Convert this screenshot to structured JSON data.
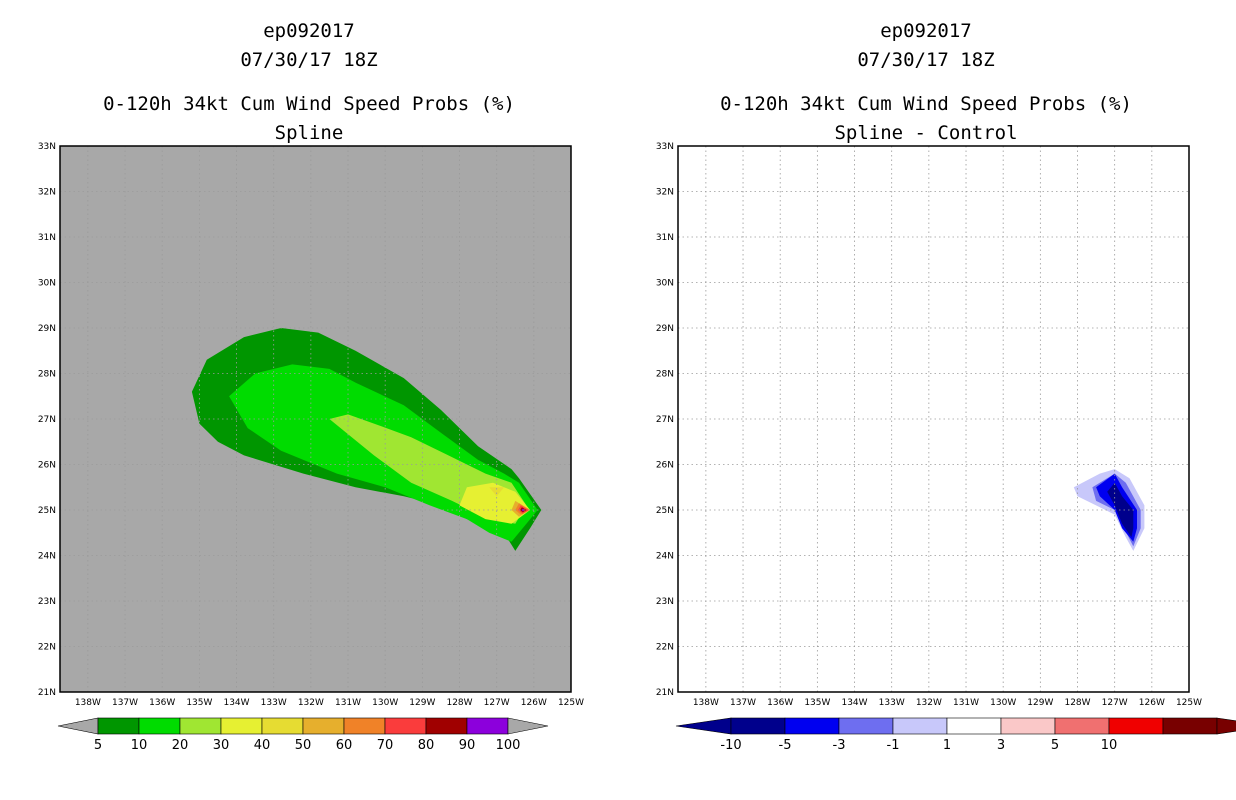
{
  "colors": {
    "land_gray": "#a8a8a8",
    "prob_levels": [
      "#009600",
      "#00dc00",
      "#a0e632",
      "#e6f032",
      "#e6dc32",
      "#e6af2d",
      "#f08228",
      "#fa3c3c",
      "#a00000",
      "#8c00dc"
    ],
    "prob_under": "#a8a8a8",
    "prob_over": "#a8a8a8",
    "diff_levels": [
      "#00008c",
      "#0000f0",
      "#6e6ef0",
      "#c8c8fa",
      "#ffffff",
      "#fac8c8",
      "#f07070",
      "#f00000",
      "#780000"
    ]
  },
  "chart_data": [
    {
      "type": "contour",
      "title_lines": [
        "ep092017",
        "07/30/17 18Z",
        "0-120h 34kt Cum Wind Speed Probs (%)",
        "Spline"
      ],
      "xlim": [
        -138.75,
        -125
      ],
      "ylim": [
        21,
        33
      ],
      "x_ticks": [
        -138,
        -137,
        -136,
        -135,
        -134,
        -133,
        -132,
        -131,
        -130,
        -129,
        -128,
        -127,
        -126,
        -125
      ],
      "x_tick_labels": [
        "138W",
        "137W",
        "136W",
        "135W",
        "134W",
        "133W",
        "132W",
        "131W",
        "130W",
        "129W",
        "128W",
        "127W",
        "126W",
        "125W"
      ],
      "y_ticks": [
        21,
        22,
        23,
        24,
        25,
        26,
        27,
        28,
        29,
        30,
        31,
        32,
        33
      ],
      "y_tick_labels": [
        "21N",
        "22N",
        "23N",
        "24N",
        "25N",
        "26N",
        "27N",
        "28N",
        "29N",
        "30N",
        "31N",
        "32N",
        "33N"
      ],
      "grid": true,
      "contour_levels": [
        5,
        10,
        20,
        30,
        40,
        50,
        60,
        70,
        80,
        90,
        100
      ],
      "colorbar_labels": [
        "5",
        "10",
        "20",
        "30",
        "40",
        "50",
        "60",
        "70",
        "80",
        "90",
        "100"
      ],
      "regions": [
        {
          "level": ">=5",
          "outline": [
            [
              -135.2,
              27.6
            ],
            [
              -134.8,
              28.3
            ],
            [
              -133.8,
              28.8
            ],
            [
              -132.8,
              29
            ],
            [
              -131.8,
              28.9
            ],
            [
              -130.8,
              28.5
            ],
            [
              -129.5,
              27.9
            ],
            [
              -128.5,
              27.2
            ],
            [
              -127.5,
              26.4
            ],
            [
              -126.6,
              25.9
            ],
            [
              -126.4,
              25.7
            ],
            [
              -125.8,
              25
            ],
            [
              -126.1,
              24.6
            ],
            [
              -126.5,
              24.1
            ],
            [
              -126.8,
              24.5
            ],
            [
              -127.8,
              24.8
            ],
            [
              -128.5,
              25.1
            ],
            [
              -129.5,
              25.3
            ],
            [
              -130.8,
              25.5
            ],
            [
              -132.2,
              25.8
            ],
            [
              -133.8,
              26.2
            ],
            [
              -134.5,
              26.5
            ],
            [
              -135.0,
              26.9
            ]
          ]
        },
        {
          "level": ">=10",
          "outline": [
            [
              -134.2,
              27.5
            ],
            [
              -133.5,
              28.0
            ],
            [
              -132.5,
              28.2
            ],
            [
              -131.5,
              28.1
            ],
            [
              -130.8,
              27.8
            ],
            [
              -129.5,
              27.3
            ],
            [
              -128.5,
              26.7
            ],
            [
              -127.5,
              26.1
            ],
            [
              -126.8,
              25.8
            ],
            [
              -126.4,
              25.6
            ],
            [
              -125.9,
              25
            ],
            [
              -126.2,
              24.7
            ],
            [
              -126.6,
              24.3
            ],
            [
              -127.2,
              24.5
            ],
            [
              -127.8,
              24.8
            ],
            [
              -128.8,
              25.1
            ],
            [
              -130,
              25.5
            ],
            [
              -131.3,
              25.8
            ],
            [
              -132.8,
              26.3
            ],
            [
              -133.7,
              26.8
            ]
          ]
        },
        {
          "level": ">=20",
          "outline": [
            [
              -131,
              27.1
            ],
            [
              -130.3,
              26.9
            ],
            [
              -129.3,
              26.6
            ],
            [
              -128.3,
              26.2
            ],
            [
              -127.3,
              25.8
            ],
            [
              -126.6,
              25.6
            ],
            [
              -126.2,
              25.1
            ],
            [
              -126.5,
              24.7
            ],
            [
              -127.2,
              24.8
            ],
            [
              -128.2,
              25.2
            ],
            [
              -129.3,
              25.6
            ],
            [
              -130.3,
              26.2
            ],
            [
              -131.5,
              27
            ]
          ]
        },
        {
          "level": ">=30",
          "outline": [
            [
              -127.8,
              25.5
            ],
            [
              -127.1,
              25.6
            ],
            [
              -126.5,
              25.4
            ],
            [
              -126.1,
              25
            ],
            [
              -126.6,
              24.7
            ],
            [
              -127.3,
              24.8
            ],
            [
              -128,
              25.1
            ]
          ]
        },
        {
          "level": ">=40",
          "outline": [
            [
              -127.2,
              25.5
            ],
            [
              -126.8,
              25.5
            ],
            [
              -127.0,
              25.3
            ]
          ]
        },
        {
          "level": ">=50",
          "outline": [
            [
              -126.5,
              25.2
            ],
            [
              -126.1,
              25
            ],
            [
              -126.4,
              24.85
            ],
            [
              -126.6,
              25
            ]
          ]
        },
        {
          "level": ">=60",
          "outline": [
            [
              -126.4,
              25.15
            ],
            [
              -126.1,
              25
            ],
            [
              -126.35,
              24.9
            ],
            [
              -126.5,
              25
            ]
          ]
        },
        {
          "level": ">=70",
          "outline": [
            [
              -126.35,
              25.1
            ],
            [
              -126.15,
              25
            ],
            [
              -126.3,
              24.92
            ],
            [
              -126.42,
              25
            ]
          ]
        },
        {
          "level": ">=80",
          "outline": [
            [
              -126.32,
              25.06
            ],
            [
              -126.2,
              25
            ],
            [
              -126.3,
              24.95
            ],
            [
              -126.37,
              25
            ]
          ]
        },
        {
          "level": ">=90",
          "outline": [
            [
              -126.3,
              25.03
            ],
            [
              -126.24,
              25
            ],
            [
              -126.3,
              24.97
            ],
            [
              -126.33,
              25
            ]
          ]
        }
      ]
    },
    {
      "type": "contour",
      "title_lines": [
        "ep092017",
        "07/30/17 18Z",
        "0-120h 34kt Cum Wind Speed Probs (%)",
        "Spline - Control"
      ],
      "xlim": [
        -138.75,
        -125
      ],
      "ylim": [
        21,
        33
      ],
      "x_ticks": [
        -138,
        -137,
        -136,
        -135,
        -134,
        -133,
        -132,
        -131,
        -130,
        -129,
        -128,
        -127,
        -126,
        -125
      ],
      "x_tick_labels": [
        "138W",
        "137W",
        "136W",
        "135W",
        "134W",
        "133W",
        "132W",
        "131W",
        "130W",
        "129W",
        "128W",
        "127W",
        "126W",
        "125W"
      ],
      "y_ticks": [
        21,
        22,
        23,
        24,
        25,
        26,
        27,
        28,
        29,
        30,
        31,
        32,
        33
      ],
      "y_tick_labels": [
        "21N",
        "22N",
        "23N",
        "24N",
        "25N",
        "26N",
        "27N",
        "28N",
        "29N",
        "30N",
        "31N",
        "32N",
        "33N"
      ],
      "grid": true,
      "contour_levels": [
        -10,
        -5,
        -3,
        -1,
        1,
        3,
        5,
        10
      ],
      "colorbar_labels": [
        "-10",
        "-5",
        "-3",
        "-1",
        "1",
        "3",
        "5",
        "10"
      ],
      "regions": [
        {
          "level": "<=-1",
          "outline": [
            [
              -128.1,
              25.5
            ],
            [
              -127.4,
              25.8
            ],
            [
              -127.0,
              25.9
            ],
            [
              -126.6,
              25.7
            ],
            [
              -126.2,
              25.1
            ],
            [
              -126.2,
              24.6
            ],
            [
              -126.5,
              24.1
            ],
            [
              -126.7,
              24.4
            ],
            [
              -127.0,
              24.9
            ],
            [
              -127.5,
              25.1
            ],
            [
              -128.0,
              25.3
            ]
          ]
        },
        {
          "level": "<=-3",
          "outline": [
            [
              -127.6,
              25.5
            ],
            [
              -127.0,
              25.8
            ],
            [
              -126.7,
              25.6
            ],
            [
              -126.3,
              25.0
            ],
            [
              -126.3,
              24.6
            ],
            [
              -126.5,
              24.2
            ],
            [
              -126.75,
              24.6
            ],
            [
              -127.0,
              25.0
            ],
            [
              -127.5,
              25.2
            ]
          ]
        },
        {
          "level": "<=-5",
          "outline": [
            [
              -127.5,
              25.5
            ],
            [
              -127.0,
              25.8
            ],
            [
              -126.8,
              25.5
            ],
            [
              -126.4,
              25.0
            ],
            [
              -126.4,
              24.6
            ],
            [
              -126.5,
              24.3
            ],
            [
              -126.8,
              24.6
            ],
            [
              -127.0,
              25.0
            ],
            [
              -127.4,
              25.3
            ]
          ]
        },
        {
          "level": "<=-10",
          "outline": [
            [
              -127.2,
              25.4
            ],
            [
              -127.0,
              25.6
            ],
            [
              -126.8,
              25.3
            ],
            [
              -126.5,
              25.0
            ],
            [
              -126.5,
              24.6
            ],
            [
              -126.55,
              24.4
            ],
            [
              -126.8,
              24.7
            ],
            [
              -127.0,
              25.1
            ]
          ]
        }
      ]
    }
  ]
}
